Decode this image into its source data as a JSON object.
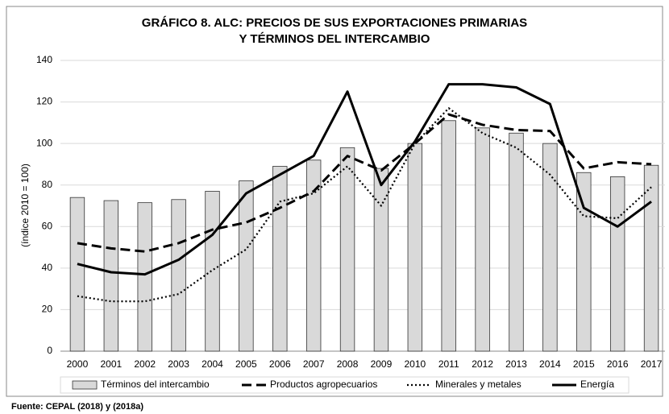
{
  "chart_data": {
    "type": "combo",
    "title": [
      "GRÁFICO 8. ALC: PRECIOS DE SUS EXPORTACIONES PRIMARIAS",
      "Y TÉRMINOS DEL INTERCAMBIO"
    ],
    "y_label": "(índice 2010 = 100)",
    "source": "Fuente: CEPAL (2018) y (2018a)",
    "categories": [
      "2000",
      "2001",
      "2002",
      "2003",
      "2004",
      "2005",
      "2006",
      "2007",
      "2008",
      "2009",
      "2010",
      "2011",
      "2012",
      "2013",
      "2014",
      "2015",
      "2016",
      "2017"
    ],
    "ylim": [
      0,
      140
    ],
    "yticks": [
      0,
      20,
      40,
      60,
      80,
      100,
      120,
      140
    ],
    "grid": true,
    "legend": "bottom",
    "series": [
      {
        "name": "Términos del intercambio",
        "type": "bar",
        "color": "#d9d9d9",
        "values": [
          74,
          72.5,
          71.5,
          73,
          77,
          82,
          89,
          92,
          98,
          88,
          100,
          111,
          107.5,
          105,
          100,
          86,
          84,
          89.5
        ]
      },
      {
        "name": "Productos agropecuarios",
        "type": "line",
        "style": "dashed",
        "color": "#000000",
        "values": [
          52,
          49.5,
          48,
          52,
          58.5,
          62,
          69,
          77,
          94,
          87,
          100,
          114,
          109,
          106.5,
          106,
          88,
          91,
          90
        ]
      },
      {
        "name": "Minerales y metales",
        "type": "line",
        "style": "dotted",
        "color": "#000000",
        "values": [
          26.5,
          24,
          24,
          27.5,
          39,
          49,
          72,
          76,
          89,
          70,
          100,
          117,
          105,
          98,
          85,
          65,
          64,
          79
        ]
      },
      {
        "name": "Energía",
        "type": "line",
        "style": "solid",
        "color": "#000000",
        "values": [
          42,
          38,
          37,
          44,
          56,
          76,
          85,
          94,
          125,
          80,
          101,
          128.5,
          128.5,
          127,
          119,
          69,
          60,
          72
        ]
      }
    ]
  }
}
